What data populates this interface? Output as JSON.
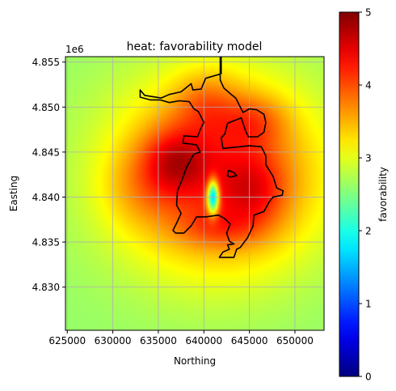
{
  "chart_data": {
    "type": "heatmap",
    "title": "heat: favorability model",
    "xlabel": "Northing",
    "ylabel": "Easting",
    "y_offset_label": "1e6",
    "xlim": [
      624800,
      653200
    ],
    "ylim": [
      4825200,
      4855600
    ],
    "x_ticks": [
      625000,
      630000,
      635000,
      640000,
      645000,
      650000
    ],
    "x_tick_labels": [
      "625000",
      "630000",
      "635000",
      "640000",
      "645000",
      "650000"
    ],
    "y_ticks": [
      4830000,
      4835000,
      4840000,
      4845000,
      4850000,
      4855000
    ],
    "y_tick_labels": [
      "4.830",
      "4.835",
      "4.840",
      "4.845",
      "4.850",
      "4.855"
    ],
    "grid": true,
    "colormap": "jet",
    "color_range": [
      0,
      5
    ],
    "colorbar_label": "favorability",
    "colorbar_ticks": [
      0,
      1,
      2,
      3,
      4,
      5
    ],
    "colorbar_tick_labels": [
      "0",
      "1",
      "2",
      "3",
      "4",
      "5"
    ],
    "background_value": 2.6,
    "hotspots": [
      {
        "x": 641500,
        "y": 4842500,
        "amplitude": 1.6,
        "spread_x": 8000,
        "spread_y": 7500
      },
      {
        "x": 636800,
        "y": 4844000,
        "amplitude": 0.8,
        "spread_x": 2500,
        "spread_y": 2500
      },
      {
        "x": 645500,
        "y": 4848500,
        "amplitude": 0.5,
        "spread_x": 2500,
        "spread_y": 2000
      },
      {
        "x": 640200,
        "y": 4850500,
        "amplitude": 0.5,
        "spread_x": 2500,
        "spread_y": 2500
      },
      {
        "x": 645500,
        "y": 4840500,
        "amplitude": 0.6,
        "spread_x": 2500,
        "spread_y": 3000
      },
      {
        "x": 641500,
        "y": 4836500,
        "amplitude": 0.4,
        "spread_x": 3000,
        "spread_y": 1500
      },
      {
        "x": 633000,
        "y": 4841000,
        "amplitude": 0.3,
        "spread_x": 3000,
        "spread_y": 3000
      }
    ],
    "low_anomaly": {
      "x": 641000,
      "y": 4840000,
      "amplitude": -2.6,
      "spread_x": 450,
      "spread_y": 1300
    },
    "boundary": [
      [
        641900,
        4855600
      ],
      [
        641900,
        4853700
      ],
      [
        640200,
        4853200
      ],
      [
        639700,
        4852000
      ],
      [
        638800,
        4851900
      ],
      [
        638600,
        4852600
      ],
      [
        637500,
        4851700
      ],
      [
        636200,
        4851400
      ],
      [
        635300,
        4851000
      ],
      [
        633500,
        4851300
      ],
      [
        633000,
        4851900
      ],
      [
        633000,
        4851100
      ],
      [
        634100,
        4850800
      ],
      [
        635200,
        4850800
      ],
      [
        636200,
        4850500
      ],
      [
        637300,
        4850700
      ],
      [
        638400,
        4850600
      ],
      [
        638900,
        4849800
      ],
      [
        639400,
        4849500
      ],
      [
        640000,
        4848300
      ],
      [
        639600,
        4847500
      ],
      [
        639300,
        4846700
      ],
      [
        637800,
        4846800
      ],
      [
        637700,
        4846000
      ],
      [
        639200,
        4845800
      ],
      [
        639600,
        4845000
      ],
      [
        638900,
        4844800
      ],
      [
        638100,
        4843300
      ],
      [
        637600,
        4841900
      ],
      [
        637100,
        4840700
      ],
      [
        637000,
        4839100
      ],
      [
        637500,
        4838200
      ],
      [
        637000,
        4837100
      ],
      [
        636600,
        4836300
      ],
      [
        636900,
        4836000
      ],
      [
        637800,
        4836000
      ],
      [
        638600,
        4836800
      ],
      [
        639200,
        4837800
      ],
      [
        640200,
        4837800
      ],
      [
        641600,
        4838000
      ],
      [
        642300,
        4837600
      ],
      [
        642900,
        4837000
      ],
      [
        642500,
        4836000
      ],
      [
        642800,
        4835100
      ],
      [
        643300,
        4834800
      ],
      [
        642600,
        4834700
      ],
      [
        642800,
        4834200
      ],
      [
        642100,
        4833900
      ],
      [
        641700,
        4833300
      ],
      [
        643300,
        4833300
      ],
      [
        643600,
        4834200
      ],
      [
        644000,
        4834400
      ],
      [
        644800,
        4835500
      ],
      [
        645400,
        4836800
      ],
      [
        645500,
        4838000
      ],
      [
        646600,
        4838400
      ],
      [
        647200,
        4839500
      ],
      [
        647600,
        4840000
      ],
      [
        648600,
        4840200
      ],
      [
        648700,
        4840700
      ],
      [
        648000,
        4841000
      ],
      [
        647600,
        4842300
      ],
      [
        646800,
        4843600
      ],
      [
        646800,
        4844600
      ],
      [
        646300,
        4845600
      ],
      [
        645000,
        4845700
      ],
      [
        643000,
        4845500
      ],
      [
        642100,
        4845400
      ],
      [
        641900,
        4846600
      ],
      [
        642300,
        4847000
      ],
      [
        642600,
        4848200
      ],
      [
        644100,
        4848800
      ],
      [
        644600,
        4847300
      ],
      [
        644900,
        4846700
      ],
      [
        645900,
        4846700
      ],
      [
        646600,
        4847200
      ],
      [
        646800,
        4848300
      ],
      [
        646600,
        4849200
      ],
      [
        645800,
        4849700
      ],
      [
        645000,
        4849800
      ],
      [
        644300,
        4849400
      ],
      [
        644000,
        4850000
      ],
      [
        643500,
        4851000
      ],
      [
        643000,
        4851400
      ],
      [
        642200,
        4852100
      ],
      [
        641800,
        4853000
      ],
      [
        641800,
        4855600
      ]
    ],
    "island": [
      [
        642700,
        4843000
      ],
      [
        643300,
        4842700
      ],
      [
        643600,
        4842400
      ],
      [
        642900,
        4842200
      ],
      [
        642600,
        4842400
      ],
      [
        642700,
        4843000
      ]
    ]
  }
}
